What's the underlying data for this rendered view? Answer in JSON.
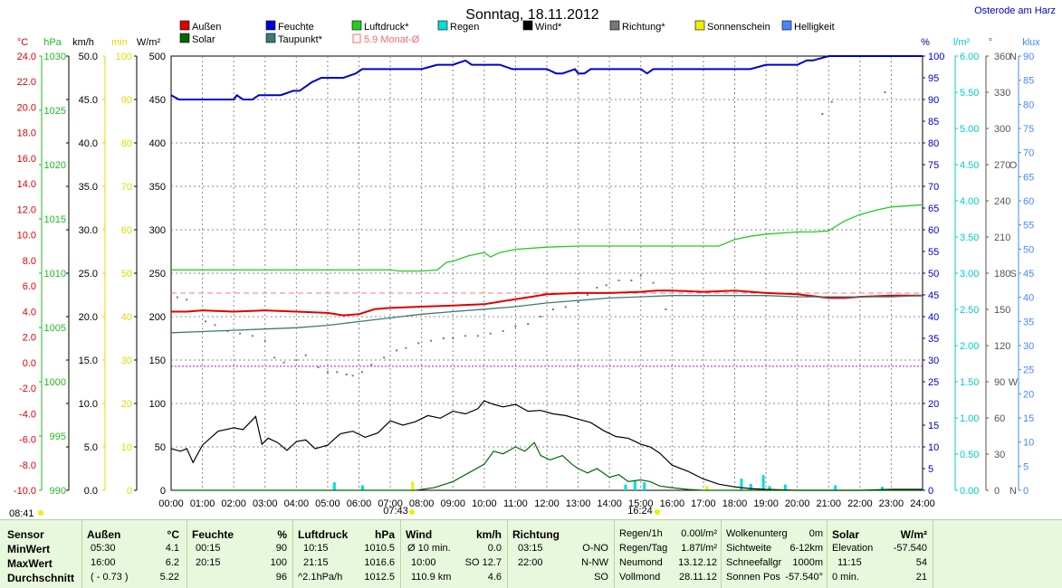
{
  "page": {
    "title": "Sonntag, 18.11.2012",
    "station": "Osterode am Harz",
    "sunrise_label": "07:43",
    "sunset_label": "16:24",
    "moment_label": "08:41"
  },
  "colors": {
    "aussen": "#e00000",
    "feuchte": "#0000cc",
    "luftdruck": "#22cc22",
    "regen": "#00dddd",
    "wind": "#000000",
    "richtung": "#777777",
    "sonne": "#eeee00",
    "helligkeit": "#4488ff",
    "solar": "#006600",
    "taupunkt": "#3a7a7a",
    "monat": "#ff8888"
  },
  "legend": [
    {
      "key": "aussen",
      "label": "Außen",
      "color": "#e00000"
    },
    {
      "key": "feuchte",
      "label": "Feuchte",
      "color": "#0000dd"
    },
    {
      "key": "luftdruck",
      "label": "Luftdruck*",
      "color": "#22cc22"
    },
    {
      "key": "regen",
      "label": "Regen",
      "color": "#00dddd"
    },
    {
      "key": "wind",
      "label": "Wind*",
      "color": "#000000"
    },
    {
      "key": "richtung",
      "label": "Richtung*",
      "color": "#777777"
    },
    {
      "key": "sonne",
      "label": "Sonnenschein",
      "color": "#eeee00"
    },
    {
      "key": "hell",
      "label": "Helligkeit",
      "color": "#4488ff"
    },
    {
      "key": "solar",
      "label": "Solar",
      "color": "#006600"
    },
    {
      "key": "taupunkt",
      "label": "Taupunkt*",
      "color": "#3a7a7a"
    },
    {
      "key": "monat",
      "label": "5.9 Monat-Ø",
      "color": "#ff6666"
    }
  ],
  "chart_data": {
    "type": "line",
    "x_ticks": [
      "00:00",
      "01:00",
      "02:00",
      "03:00",
      "04:00",
      "05:00",
      "06:00",
      "07:00",
      "08:00",
      "09:00",
      "10:00",
      "11:00",
      "12:00",
      "13:00",
      "14:00",
      "15:00",
      "16:00",
      "17:00",
      "18:00",
      "19:00",
      "20:00",
      "21:00",
      "22:00",
      "23:00",
      "24:00"
    ],
    "axes": [
      {
        "unit": "°C",
        "color": "#e00000",
        "ticks": [
          "24.0",
          "22.0",
          "20.0",
          "18.0",
          "16.0",
          "14.0",
          "12.0",
          "10.0",
          "8.0",
          "6.0",
          "4.0",
          "2.0",
          "0.0",
          "-2.0",
          "-4.0",
          "-6.0",
          "-8.0",
          "-10.0"
        ],
        "range": [
          -10,
          25
        ]
      },
      {
        "unit": "hPa",
        "color": "#22bb22",
        "ticks": [
          "1030",
          "1025",
          "1020",
          "1015",
          "1010",
          "1005",
          "1000",
          "995",
          "990"
        ],
        "range": [
          990,
          1030
        ]
      },
      {
        "unit": "km/h",
        "color": "#000000",
        "ticks": [
          "50.0",
          "45.0",
          "40.0",
          "35.0",
          "30.0",
          "25.0",
          "20.0",
          "15.0",
          "10.0",
          "5.0",
          "0.0"
        ],
        "range": [
          0,
          50
        ]
      },
      {
        "unit": "min",
        "color": "#dddd00",
        "ticks": [
          "100",
          "90",
          "80",
          "70",
          "60",
          "50",
          "40",
          "30",
          "20",
          "10",
          "0"
        ],
        "range": [
          0,
          100
        ]
      },
      {
        "unit": "W/m²",
        "color": "#000000",
        "ticks": [
          "500",
          "450",
          "400",
          "350",
          "300",
          "250",
          "200",
          "150",
          "100",
          "50",
          "0"
        ],
        "range": [
          0,
          500
        ]
      },
      {
        "unit": "%",
        "color": "#0000cc",
        "ticks": [
          "100",
          "95",
          "90",
          "85",
          "80",
          "75",
          "70",
          "65",
          "60",
          "55",
          "50",
          "45",
          "40",
          "35",
          "30",
          "25",
          "20",
          "15",
          "10",
          "5",
          "0"
        ],
        "range": [
          0,
          100
        ]
      },
      {
        "unit": "l/m²",
        "color": "#00cccc",
        "ticks": [
          "6.00",
          "5.50",
          "5.00",
          "4.50",
          "4.00",
          "3.50",
          "3.00",
          "2.50",
          "2.00",
          "1.50",
          "1.00",
          "0.50",
          "0.00"
        ],
        "range": [
          0,
          6
        ]
      },
      {
        "unit": "°",
        "color": "#555555",
        "ticks": [
          "360",
          "330",
          "300",
          "270",
          "240",
          "210",
          "180",
          "150",
          "120",
          "90",
          "60",
          "30",
          "0"
        ],
        "range": [
          0,
          360
        ],
        "dir_labels": [
          "N",
          "W",
          "S",
          "O",
          "N"
        ]
      },
      {
        "unit": "klux",
        "color": "#4488ff",
        "ticks": [
          "90",
          "85",
          "80",
          "75",
          "70",
          "65",
          "60",
          "55",
          "50",
          "45",
          "40",
          "35",
          "30",
          "25",
          "20",
          "15",
          "10",
          "5",
          "0"
        ],
        "range": [
          0,
          90
        ]
      }
    ],
    "series": [
      {
        "name": "Feuchte",
        "key": "feuchte",
        "axis": "%",
        "x": [
          0,
          0.25,
          0.5,
          1,
          1.5,
          2,
          2.1,
          2.3,
          2.6,
          2.8,
          3,
          3.5,
          3.9,
          4.1,
          4.5,
          4.8,
          5,
          5.5,
          5.9,
          6.1,
          6.5,
          7,
          7.5,
          8,
          8.5,
          9,
          9.4,
          9.6,
          9.8,
          10,
          10.5,
          10.9,
          11,
          11.5,
          12,
          12.3,
          12.5,
          12.9,
          13,
          13.2,
          13.4,
          13.6,
          14,
          14.5,
          15,
          15.2,
          15.4,
          15.6,
          16,
          16.5,
          17,
          17.5,
          17.9,
          18,
          18.5,
          19,
          19.5,
          19.7,
          20,
          20.3,
          20.5,
          21,
          22,
          23,
          24
        ],
        "y": [
          91,
          90,
          90,
          90,
          90,
          90,
          91,
          90,
          90,
          91,
          91,
          91,
          92,
          92,
          94,
          95,
          95,
          95,
          96,
          97,
          97,
          97,
          97,
          97,
          98,
          98,
          99,
          98,
          98,
          98,
          98,
          97,
          97,
          97,
          97,
          96,
          96,
          97,
          96,
          96,
          97,
          97,
          97,
          97,
          97,
          96,
          97,
          97,
          97,
          97,
          97,
          97,
          97,
          97,
          97,
          98,
          98,
          98,
          98,
          99,
          99,
          100,
          100,
          100,
          100
        ]
      },
      {
        "name": "Luftdruck*",
        "key": "luftdruck",
        "axis": "hPa",
        "x": [
          0,
          1,
          2,
          3,
          4,
          5,
          6,
          7,
          7.3,
          7.6,
          8,
          8.5,
          8.8,
          9,
          9.5,
          10,
          10.2,
          10.5,
          11,
          12,
          13,
          14,
          15,
          16,
          17,
          17.5,
          18,
          18.5,
          19,
          20,
          20.5,
          21,
          21.5,
          22,
          22.5,
          23,
          24
        ],
        "y": [
          1010.3,
          1010.3,
          1010.3,
          1010.3,
          1010.3,
          1010.3,
          1010.3,
          1010.3,
          1010.2,
          1010.2,
          1010.2,
          1010.3,
          1011,
          1011.1,
          1011.6,
          1011.9,
          1011.5,
          1011.9,
          1012.2,
          1012.4,
          1012.5,
          1012.5,
          1012.5,
          1012.5,
          1012.5,
          1012.5,
          1013.1,
          1013.4,
          1013.6,
          1013.8,
          1013.8,
          1013.9,
          1014.8,
          1015.4,
          1015.8,
          1016.1,
          1016.3
        ]
      },
      {
        "name": "Außen",
        "key": "aussen",
        "axis": "°C",
        "x": [
          0,
          0.5,
          1,
          2,
          3,
          4,
          5,
          5.5,
          6,
          6.5,
          7,
          8,
          9,
          10,
          10.5,
          11,
          11.5,
          12,
          13,
          14,
          15,
          15.5,
          16,
          17,
          18,
          19,
          20,
          21,
          21.5,
          22,
          23,
          24
        ],
        "y": [
          4.4,
          4.4,
          4.5,
          4.4,
          4.5,
          4.4,
          4.3,
          4.1,
          4.2,
          4.6,
          4.7,
          4.8,
          4.9,
          5,
          5.2,
          5.4,
          5.6,
          5.8,
          5.9,
          5.9,
          6,
          6.1,
          6.1,
          6,
          6.1,
          5.9,
          5.8,
          5.5,
          5.5,
          5.6,
          5.7,
          5.7
        ]
      },
      {
        "name": "Taupunkt*",
        "key": "taupunkt",
        "axis": "°C",
        "x": [
          0,
          1,
          2,
          3,
          4,
          5,
          6,
          7,
          8,
          9,
          10,
          11,
          12,
          13,
          14,
          15,
          16,
          17,
          18,
          19,
          20,
          21,
          22,
          23,
          24
        ],
        "y": [
          2.7,
          2.8,
          2.9,
          3,
          3.1,
          3.3,
          3.6,
          3.9,
          4.2,
          4.4,
          4.6,
          4.8,
          5.1,
          5.3,
          5.5,
          5.6,
          5.7,
          5.7,
          5.7,
          5.7,
          5.6,
          5.6,
          5.6,
          5.6,
          5.7
        ]
      },
      {
        "name": "Wind*",
        "key": "wind",
        "axis": "km/h",
        "x": [
          0,
          0.3,
          0.5,
          0.7,
          1,
          1.5,
          2,
          2.3,
          2.7,
          2.9,
          3.1,
          3.4,
          3.7,
          4,
          4.3,
          4.6,
          5,
          5.4,
          5.8,
          6.2,
          6.6,
          7,
          7.4,
          7.8,
          8.2,
          8.6,
          9,
          9.4,
          9.8,
          10,
          10.3,
          10.6,
          11,
          11.4,
          11.8,
          12.2,
          12.6,
          13,
          13.4,
          13.8,
          14.2,
          14.6,
          15,
          15.3,
          15.6,
          16,
          16.5,
          17,
          17.5,
          18,
          18.5,
          19,
          19.5,
          20,
          21,
          22,
          23,
          24
        ],
        "y": [
          4.8,
          4.5,
          4.8,
          3.2,
          5.2,
          6.8,
          7.2,
          7,
          8.5,
          5.3,
          6,
          5.5,
          4.6,
          5.6,
          5.8,
          4.8,
          5.2,
          6.5,
          6.8,
          6.1,
          6.6,
          8,
          7.5,
          7.9,
          8.6,
          8.3,
          9.1,
          8.8,
          9.4,
          10.3,
          9.9,
          9.6,
          9.9,
          9.1,
          9.2,
          8.8,
          8.6,
          8.2,
          7.8,
          6.9,
          6.2,
          6,
          5.3,
          5,
          4.3,
          2.9,
          2.2,
          1.3,
          0.7,
          0.4,
          0.2,
          0.1,
          0.05,
          0,
          0,
          0,
          0.1,
          0.1
        ]
      },
      {
        "name": "Solar",
        "key": "solar",
        "axis": "W/m²",
        "x": [
          0,
          7.8,
          8.4,
          9,
          9.5,
          10,
          10.3,
          10.6,
          11,
          11.3,
          11.6,
          11.8,
          12.1,
          12.5,
          12.8,
          13,
          13.3,
          13.6,
          14,
          14.3,
          14.6,
          15,
          15.3,
          15.6,
          16,
          16.5,
          17,
          24
        ],
        "y": [
          0,
          0,
          3,
          10,
          20,
          30,
          45,
          42,
          50,
          45,
          55,
          40,
          35,
          40,
          30,
          25,
          20,
          25,
          15,
          18,
          10,
          12,
          10,
          5,
          3,
          1,
          0,
          0
        ]
      },
      {
        "name": "Helligkeit",
        "key": "hell",
        "axis": "klux",
        "x": [
          0,
          7.8,
          8.4,
          9,
          9.5,
          10,
          10.3,
          10.6,
          11,
          11.3,
          11.6,
          11.8,
          12.1,
          12.5,
          12.8,
          13,
          13.3,
          13.6,
          14,
          14.3,
          14.6,
          15,
          15.3,
          15.6,
          16,
          16.5,
          17,
          24
        ],
        "y": [
          0,
          0,
          0.4,
          1.5,
          3,
          5,
          7,
          6.5,
          7.8,
          7,
          8.4,
          6,
          5.2,
          6,
          4.6,
          3.8,
          3.1,
          3.6,
          2.2,
          2.7,
          1.6,
          1.9,
          1.5,
          0.8,
          0.4,
          0.1,
          0,
          0
        ]
      }
    ],
    "richtung_dots": {
      "axis": "°",
      "x": [
        0.2,
        0.5,
        1.1,
        1.4,
        1.8,
        2.2,
        2.6,
        3,
        3.3,
        3.6,
        4,
        4.3,
        4.7,
        5,
        5.3,
        5.6,
        5.8,
        6.1,
        6.4,
        6.8,
        7.2,
        7.5,
        7.9,
        8.3,
        8.7,
        9,
        9.4,
        9.8,
        10.2,
        10.6,
        11,
        11.4,
        11.8,
        12.2,
        12.6,
        13,
        13.3,
        13.6,
        13.9,
        14.3,
        14.7,
        15,
        15.4,
        15.8,
        20.8,
        21.1,
        22.8
      ],
      "y": [
        160,
        158,
        140,
        137,
        132,
        130,
        128,
        124,
        110,
        106,
        108,
        112,
        102,
        98,
        98,
        96,
        95,
        98,
        104,
        110,
        116,
        118,
        122,
        124,
        126,
        126,
        128,
        128,
        130,
        132,
        136,
        138,
        144,
        150,
        152,
        156,
        162,
        168,
        170,
        174,
        174,
        178,
        172,
        150,
        312,
        322,
        330
      ]
    },
    "regen_bars": {
      "axis": "l/m²",
      "x": [
        5.2,
        6.1,
        14.5,
        14.8,
        15.1,
        18.2,
        18.5,
        18.9,
        19.1,
        19.6,
        21.2,
        22.7
      ],
      "y": [
        0.11,
        0.07,
        0.08,
        0.14,
        0.11,
        0.16,
        0.09,
        0.21,
        0.06,
        0.08,
        0.07,
        0.05
      ]
    },
    "sonne_bars": {
      "axis": "min",
      "x": [
        7.7,
        17.1
      ],
      "y": [
        2,
        1
      ]
    },
    "month_avg_line": {
      "axis": "°C",
      "value": 5.9
    },
    "zero_line": {
      "axis": "°C",
      "value": 0
    }
  },
  "table": {
    "row_labels": [
      "Sensor",
      "MinWert",
      "MaxWert",
      "Durchschnitt"
    ],
    "aussen": {
      "title": "Außen",
      "unit": "°C",
      "min_time": "05:30",
      "min": "4.1",
      "max_time": "16:00",
      "max": "6.2",
      "avg_note": "( - 0.73 )",
      "avg": "5.22"
    },
    "feuchte": {
      "title": "Feuchte",
      "unit": "%",
      "min_time": "00:15",
      "min": "90",
      "max_time": "20:15",
      "max": "100",
      "avg": "96"
    },
    "luftdruck": {
      "title": "Luftdruck",
      "unit": "hPa",
      "min_time": "10:15",
      "min": "1010.5",
      "max_time": "21:15",
      "max": "1016.6",
      "avg_note": "^2.1hPa/h",
      "avg": "1012.5"
    },
    "wind": {
      "title": "Wind",
      "unit": "km/h",
      "r1a": "Ø 10 min.",
      "r1b": "0.0",
      "r2a": "10:00",
      "r2b": "SO 12.7",
      "r3a": "110.9 km",
      "r3b": "4.6"
    },
    "richtung": {
      "title": "Richtung",
      "r1a": "03:15",
      "r1b": "O-NO",
      "r2a": "22:00",
      "r2b": "N-NW",
      "r3b": "SO"
    },
    "regen": [
      {
        "k": "Regen/1h",
        "v": "0.00l/m²"
      },
      {
        "k": "Regen/Tag",
        "v": "1.87l/m²"
      },
      {
        "k": "Neumond",
        "v": "13.12.12"
      },
      {
        "k": "Vollmond",
        "v": "28.11.12"
      }
    ],
    "wolken": [
      {
        "k": "Wolkenunterg",
        "v": "0m"
      },
      {
        "k": "Sichtweite",
        "v": "6-12km"
      },
      {
        "k": "Schneefallgr",
        "v": "1000m"
      },
      {
        "k": "Sonnen Pos",
        "v": "-57.540°"
      }
    ],
    "solar": {
      "title": "Solar",
      "unit": "W/m²",
      "r1a": "Elevation",
      "r1b": "-57.540",
      "r2a": "11:15",
      "r2b": "54",
      "r3a": "0 min.",
      "r3b": "21"
    }
  }
}
